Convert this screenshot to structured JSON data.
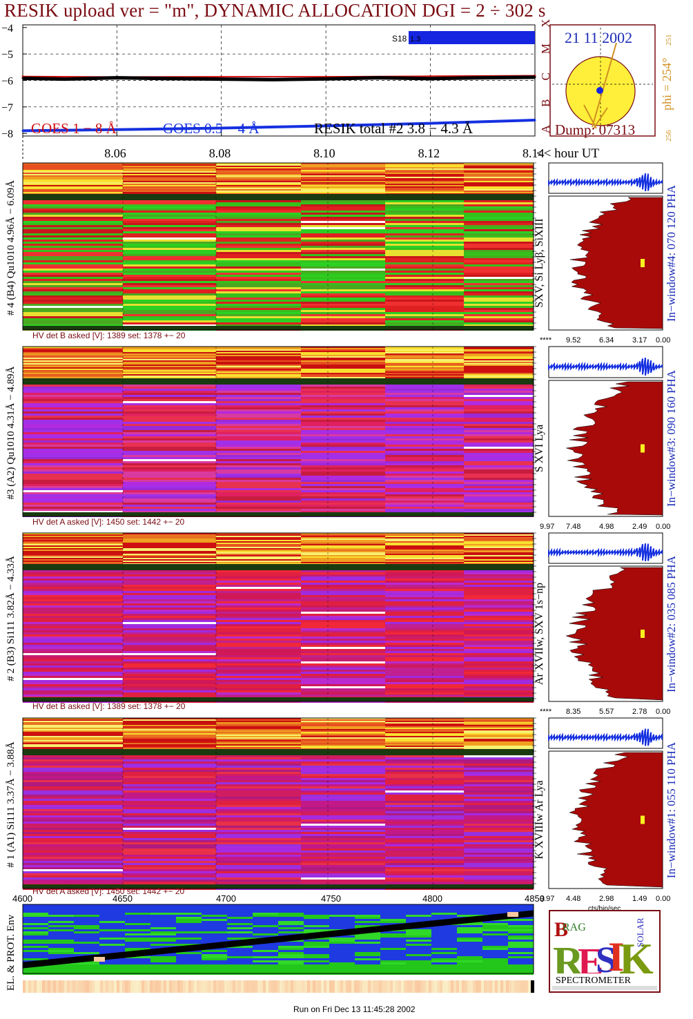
{
  "header": {
    "title": "RESIK upload ver = \"m\", DYNAMIC ALLOCATION  DGI =   2 ÷ 302 s"
  },
  "goes_panel": {
    "y_ticks": [
      "−4",
      "−5",
      "−6",
      "−7",
      "−8"
    ],
    "class_letters": [
      "X",
      "M",
      "C",
      "B",
      "A"
    ],
    "legend_goes18": "GOES 1 − 8 Å",
    "legend_goes054": "GOES 0.5 − 4 Å",
    "legend_resik": "RESIK total #2  3.8 − 4.3 Å",
    "saa_label": "S18",
    "saa_label2": "1.3"
  },
  "chart_data": {
    "type": "line",
    "x_label": "<< hour UT",
    "x_ticks": [
      "8.06",
      "8.08",
      "8.10",
      "8.12",
      "8.14"
    ],
    "xlim": [
      8.042,
      8.14
    ],
    "ylim": [
      -8.1,
      -3.9
    ],
    "series": [
      {
        "name": "GOES 1 − 8 Å",
        "color": "#d01010",
        "x": [
          8.042,
          8.06,
          8.08,
          8.1,
          8.12,
          8.14
        ],
        "y": [
          -5.85,
          -5.87,
          -5.86,
          -5.86,
          -5.84,
          -5.82
        ]
      },
      {
        "name": "GOES 0.5 − 4 Å",
        "color": "#1530e0",
        "x": [
          8.042,
          8.06,
          8.08,
          8.1,
          8.12,
          8.14
        ],
        "y": [
          -7.9,
          -7.86,
          -7.8,
          -7.72,
          -7.62,
          -7.5
        ]
      },
      {
        "name": "RESIK total #2  3.8 − 4.3 Å",
        "color": "#000000",
        "x": [
          8.042,
          8.05,
          8.06,
          8.07,
          8.08,
          8.09,
          8.1,
          8.11,
          8.12,
          8.13,
          8.14
        ],
        "y": [
          -5.92,
          -5.95,
          -5.9,
          -5.93,
          -5.95,
          -5.97,
          -5.94,
          -5.9,
          -5.93,
          -5.9,
          -5.88
        ]
      }
    ]
  },
  "sun_panel": {
    "date": "21 11 2002",
    "dump": "Dump: 07313",
    "phi": "phi = 254°",
    "phi_sup": "251",
    "phi_bottom": "256"
  },
  "spectra": [
    {
      "left_label": "# 4 (B4) Qu1010 4.96Å − 6.09Å",
      "line_label": "SXV, Si Lyβ, SiXIII",
      "window_label": "In−window#4:  070 120 PHA",
      "hv": "HV det B asked [V]:  1389 set:  1378 +−   20",
      "axis_ticks": [
        "****",
        "9.52",
        "6.34",
        "3.17",
        "0.00"
      ],
      "palette": "green"
    },
    {
      "left_label": "#3 (A2) Qu1010  4.31Å − 4.89Å",
      "line_label": "S XVI Lya",
      "window_label": "In−window#3:  090 160 PHA",
      "hv": "HV det A asked [V]:  1450 set:  1442 +−   20",
      "axis_ticks": [
        "9.97",
        "7.48",
        "4.98",
        "2.49",
        "0.00"
      ],
      "palette": "purple"
    },
    {
      "left_label": "# 2 (B3) Si111  3.82Å − 4.33Å",
      "line_label": "Ar XVIIw,  SXV 1s−np",
      "window_label": "In−window#2:  035 085 PHA",
      "hv": "HV det B asked [V]:  1389 set:  1378 +−   20",
      "axis_ticks": [
        "****",
        "8.35",
        "5.57",
        "2.78",
        "0.00"
      ],
      "palette": "magenta"
    },
    {
      "left_label": "# 1 (A1) Si111  3.37Å − 3.88Å",
      "line_label": "K XVIIIw  Ar Lya",
      "window_label": "In−window#1:  055 110 PHA",
      "hv": "HV det A asked [V]:  1450 set:  1442 +−   20",
      "axis_ticks": [
        "9.97",
        "4.48",
        "2.98",
        "1.49",
        "0.00"
      ],
      "axis_unit": "cts/bin/sec",
      "palette": "magenta2"
    }
  ],
  "orbit_panel": {
    "x_ticks": [
      "4600",
      "4650",
      "4700",
      "4750",
      "4800",
      "4850"
    ],
    "y_label": "EL. & PROT. Env"
  },
  "logo": {
    "line1": "BRAG",
    "big": "RESIK",
    "side": "SOLAR",
    "bottom": "SPECTROMETER"
  },
  "footer": {
    "run_text": "Run on Fri Dec 13 11:45:28 2002"
  }
}
